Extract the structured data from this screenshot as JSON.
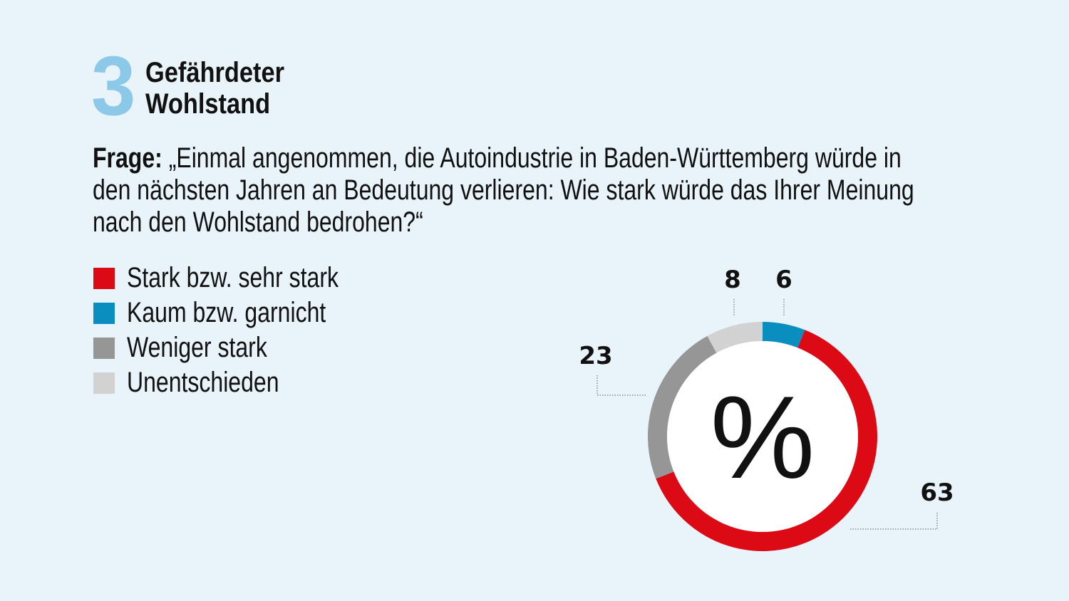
{
  "header": {
    "number": "3",
    "title_line1": "Gefährdeter",
    "title_line2": "Wohlstand"
  },
  "question": {
    "label": "Frage:",
    "line1": " „Einmal angenommen, die Autoindustrie in Baden-Württemberg würde in",
    "line2": "den nächsten Jahren an Bedeutung verlieren: Wie stark würde das Ihrer Meinung",
    "line3": "nach den Wohlstand bedrohen?“"
  },
  "chart_data": {
    "type": "pie",
    "donut": true,
    "center_label": "%",
    "unit": "%",
    "slices": [
      {
        "name": "Kaum bzw. garnicht",
        "value": 6,
        "color": "#0a8ec0"
      },
      {
        "name": "Stark bzw. sehr stark",
        "value": 63,
        "color": "#dc0a14"
      },
      {
        "name": "Weniger stark",
        "value": 23,
        "color": "#969696"
      },
      {
        "name": "Unentschieden",
        "value": 8,
        "color": "#d2d2d2"
      }
    ],
    "legend": [
      {
        "label": "Stark bzw. sehr stark",
        "color": "#dc0a14"
      },
      {
        "label": "Kaum bzw. garnicht",
        "color": "#0a8ec0"
      },
      {
        "label": "Weniger stark",
        "color": "#969696"
      },
      {
        "label": "Unentschieden",
        "color": "#d2d2d2"
      }
    ],
    "data_labels": [
      "6",
      "63",
      "23",
      "8"
    ],
    "legend_position": "left"
  }
}
